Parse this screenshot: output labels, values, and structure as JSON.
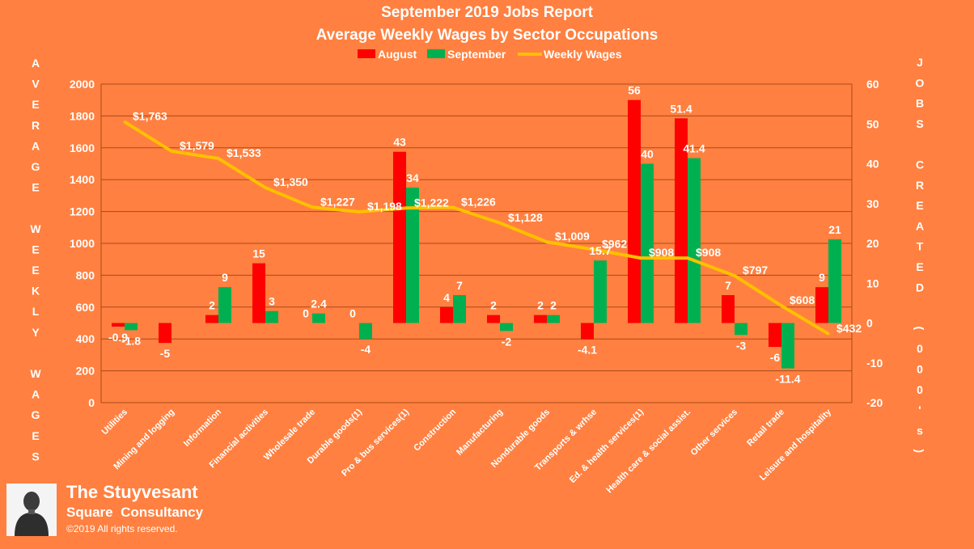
{
  "chart_data": {
    "type": "bar",
    "title": "September 2019 Jobs Report",
    "subtitle": "Average Weekly Wages by Sector Occupations",
    "categories": [
      "Utilities",
      "Mining and logging",
      "Information",
      "Financial activities",
      "Wholesale trade",
      "Durable goods(1)",
      "Pro & bus services(1)",
      "Construction",
      "Manufacturing",
      "Nondurable goods",
      "Transports & wrhse",
      "Ed. & health services(1)",
      "Health care & social assist.",
      "Other services",
      "Retail trade",
      "Leisure and hospitality"
    ],
    "series": [
      {
        "name": "August",
        "type": "bar",
        "axis": "right",
        "color": "#FF0000",
        "values": [
          -0.9,
          -5,
          2,
          15,
          0,
          0,
          43,
          4,
          2,
          2,
          -4.1,
          56,
          51.4,
          7,
          -6,
          9
        ],
        "labels": [
          "-0.9",
          "-5",
          "2",
          "15",
          "0",
          "0",
          "43",
          "4",
          "2",
          "2",
          "-4.1",
          "56",
          "51.4",
          "7",
          "-6",
          "9"
        ]
      },
      {
        "name": "September",
        "type": "bar",
        "axis": "right",
        "color": "#00B050",
        "values": [
          -1.8,
          0,
          9,
          3,
          2.4,
          -4,
          34,
          7,
          -2,
          2,
          15.7,
          40,
          41.4,
          -3,
          -11.4,
          21
        ],
        "labels": [
          "-1.8",
          "",
          "9",
          "3",
          "2.4",
          "-4",
          "34",
          "7",
          "-2",
          "2",
          "15.7",
          "40",
          "41.4",
          "-3",
          "-11.4",
          "21"
        ]
      },
      {
        "name": "Weekly Wages",
        "type": "line",
        "axis": "left",
        "color": "#FFC000",
        "values": [
          1763,
          1579,
          1533,
          1350,
          1227,
          1198,
          1222,
          1226,
          1128,
          1009,
          962,
          908,
          908,
          797,
          608,
          432
        ],
        "labels": [
          "$1,763",
          "$1,579",
          "$1,533",
          "$1,350",
          "$1,227",
          "$1,198",
          "$1,222",
          "$1,226",
          "$1,128",
          "$1,009",
          "$962",
          "$908",
          "$908",
          "$797",
          "$608",
          "$432"
        ]
      }
    ],
    "y_left": {
      "label": "AVERAGE WEEKLY WAGES",
      "ylim": [
        0,
        2000
      ],
      "ticks": [
        "0",
        "200",
        "400",
        "600",
        "800",
        "1000",
        "1200",
        "1400",
        "1600",
        "1800",
        "2000"
      ]
    },
    "y_right": {
      "label": "JOBS CREATED (000's)",
      "ylim": [
        -20,
        60
      ],
      "ticks": [
        "-20",
        "-10",
        "0",
        "10",
        "20",
        "30",
        "40",
        "50",
        "60"
      ]
    },
    "legend_position": "top-center",
    "grid": true
  },
  "branding": {
    "name": "The Stuyvesant",
    "sub": "Square  Consultancy",
    "copyright": "©2019 All rights reserved.",
    "logo_icon": "portrait-bust-icon"
  }
}
